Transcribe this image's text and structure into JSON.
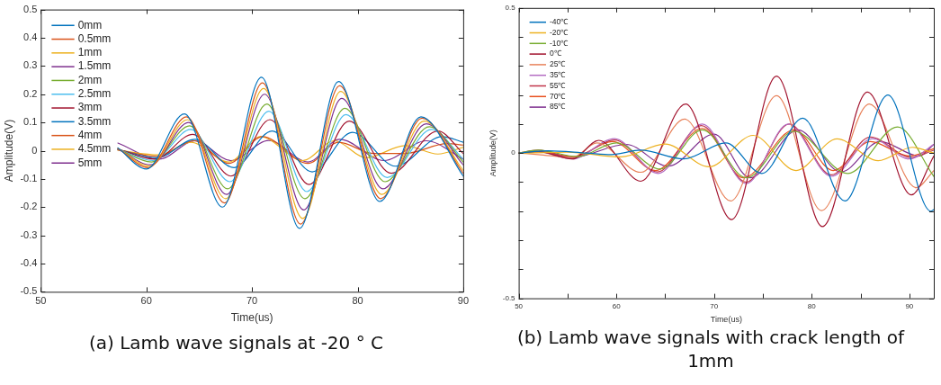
{
  "chart_data": [
    {
      "type": "line",
      "title": "(a) Lamb wave signals at -20 ° C",
      "xlabel": "Time(us)",
      "ylabel": "Amplitude(V)",
      "xlim": [
        50,
        90
      ],
      "ylim": [
        -0.5,
        0.5
      ],
      "xticks": [
        50,
        60,
        70,
        80,
        90
      ],
      "yticks": [
        -0.5,
        -0.4,
        -0.3,
        -0.2,
        -0.1,
        0,
        0.1,
        0.2,
        0.3,
        0.4,
        0.5
      ],
      "legend": "top left",
      "series": [
        {
          "name": "0mm",
          "color": "#0072bd",
          "x": [
            57.3,
            60.0,
            63.6,
            67.2,
            70.9,
            74.5,
            78.2,
            82.1,
            86.0,
            90
          ],
          "values": [
            0.01,
            -0.065,
            0.13,
            -0.2,
            0.26,
            -0.275,
            0.245,
            -0.18,
            0.12,
            -0.09
          ]
        },
        {
          "name": "0.5mm",
          "color": "#d95319",
          "x": [
            57.3,
            60.2,
            63.8,
            67.4,
            71.0,
            74.6,
            78.3,
            82.2,
            86.1,
            90
          ],
          "values": [
            0.008,
            -0.06,
            0.12,
            -0.185,
            0.24,
            -0.26,
            0.23,
            -0.17,
            0.115,
            -0.08
          ]
        },
        {
          "name": "1mm",
          "color": "#edb120",
          "x": [
            57.3,
            60.3,
            63.9,
            67.5,
            71.1,
            74.8,
            78.4,
            82.3,
            86.3,
            90
          ],
          "values": [
            0.008,
            -0.055,
            0.11,
            -0.17,
            0.22,
            -0.24,
            0.21,
            -0.155,
            0.105,
            -0.07
          ]
        },
        {
          "name": "1.5mm",
          "color": "#7e2f8e",
          "x": [
            57.3,
            60.4,
            64.0,
            67.6,
            71.2,
            74.9,
            78.5,
            82.4,
            86.5,
            90
          ],
          "values": [
            0.006,
            -0.05,
            0.1,
            -0.155,
            0.2,
            -0.21,
            0.185,
            -0.135,
            0.095,
            -0.05
          ]
        },
        {
          "name": "2mm",
          "color": "#77ac30",
          "x": [
            57.3,
            60.5,
            64.1,
            67.7,
            71.4,
            75.0,
            78.8,
            82.6,
            86.8,
            90
          ],
          "values": [
            0.005,
            -0.04,
            0.088,
            -0.135,
            0.165,
            -0.17,
            0.15,
            -0.11,
            0.085,
            -0.04
          ]
        },
        {
          "name": "2.5mm",
          "color": "#4dbeee",
          "x": [
            57.3,
            60.6,
            64.2,
            67.9,
            71.6,
            75.2,
            78.9,
            82.8,
            87.0,
            90
          ],
          "values": [
            0.005,
            -0.035,
            0.075,
            -0.11,
            0.14,
            -0.145,
            0.128,
            -0.095,
            0.075,
            -0.03
          ]
        },
        {
          "name": "3mm",
          "color": "#a2142f",
          "x": [
            57.3,
            60.8,
            64.4,
            68.0,
            71.7,
            75.4,
            79.2,
            83.2,
            87.6,
            90
          ],
          "values": [
            0.005,
            -0.03,
            0.058,
            -0.09,
            0.11,
            -0.12,
            0.105,
            -0.08,
            0.07,
            -0.01
          ]
        },
        {
          "name": "3.5mm",
          "color": "#0072bd",
          "x": [
            57.3,
            61.0,
            64.6,
            68.3,
            71.9,
            75.7,
            79.5,
            83.6,
            88.0,
            90
          ],
          "values": [
            0.004,
            -0.025,
            0.04,
            -0.06,
            0.07,
            -0.075,
            0.065,
            -0.055,
            0.05,
            0.03
          ]
        },
        {
          "name": "4mm",
          "color": "#d95319",
          "x": [
            57.3,
            61.0,
            64.5,
            67.8,
            71.0,
            75.3,
            78.2,
            81.5,
            84.5,
            88.5,
            90
          ],
          "values": [
            0.003,
            -0.02,
            0.035,
            -0.045,
            0.05,
            -0.045,
            0.03,
            -0.01,
            -0.01,
            0.025,
            0.02
          ]
        },
        {
          "name": "4.5mm",
          "color": "#edb120",
          "x": [
            57.3,
            61.2,
            64.2,
            67.8,
            70.8,
            74.8,
            77.8,
            80.8,
            84.5,
            87.6,
            90
          ],
          "values": [
            0.002,
            -0.015,
            0.03,
            -0.04,
            0.05,
            -0.035,
            0.035,
            -0.025,
            0.018,
            -0.012,
            0.012
          ]
        },
        {
          "name": "5mm",
          "color": "#7e2f8e",
          "x": [
            57.3,
            61.2,
            64.6,
            68.0,
            71.6,
            75.3,
            78.3,
            82.5,
            86.5,
            90
          ],
          "values": [
            0.027,
            -0.03,
            0.035,
            -0.035,
            0.036,
            -0.04,
            0.04,
            -0.035,
            0.035,
            -0.03
          ]
        }
      ]
    },
    {
      "type": "line",
      "title": "(b) Lamb wave signals with crack length of 1mm",
      "xlabel": "Time(us)",
      "ylabel": "Amplitude(V)",
      "xlim": [
        50,
        92.5
      ],
      "ylim": [
        -0.5,
        0.5
      ],
      "xticks": [
        50,
        {
          "value": 55,
          "label": null
        },
        60,
        {
          "value": 65,
          "label": null
        },
        70,
        {
          "value": 75,
          "label": null
        },
        80,
        {
          "value": 85,
          "label": null
        },
        90
      ],
      "yticks": [
        -0.5,
        {
          "value": -0.4,
          "label": null
        },
        {
          "value": -0.3,
          "label": null
        },
        {
          "value": -0.2,
          "label": null
        },
        {
          "value": -0.1,
          "label": null
        },
        0,
        {
          "value": 0.1,
          "label": null
        },
        {
          "value": 0.2,
          "label": null
        },
        {
          "value": 0.3,
          "label": null
        },
        {
          "value": 0.4,
          "label": null
        },
        0.5
      ],
      "legend": "top left",
      "series": [
        {
          "name": "-40℃",
          "color": "#0072bd",
          "x": [
            50,
            53,
            57,
            59.5,
            62.5,
            66.9,
            71.2,
            74.9,
            79.1,
            83.4,
            87.8,
            92.2,
            92.5
          ],
          "values": [
            0,
            0.008,
            0,
            -0.005,
            0.01,
            -0.02,
            0.035,
            -0.07,
            0.12,
            -0.165,
            0.2,
            -0.2,
            -0.195
          ]
        },
        {
          "name": "-20℃",
          "color": "#edb120",
          "x": [
            50,
            55,
            60.5,
            65.0,
            69.5,
            74.0,
            78.4,
            82.6,
            86.8,
            90.3,
            92.5
          ],
          "values": [
            0,
            0.003,
            -0.013,
            0.031,
            -0.047,
            0.061,
            -0.06,
            0.049,
            -0.026,
            0.02,
            0
          ]
        },
        {
          "name": "-10℃",
          "color": "#77ac30",
          "x": [
            50,
            52,
            56,
            60,
            64.5,
            68.8,
            73.3,
            78.2,
            83.7,
            88.8,
            92.5
          ],
          "values": [
            0,
            0.01,
            -0.012,
            0.035,
            -0.055,
            0.08,
            -0.085,
            0.075,
            -0.07,
            0.09,
            -0.08
          ]
        },
        {
          "name": "0℃",
          "color": "#a2142f",
          "x": [
            50,
            52,
            55.5,
            58.2,
            62.5,
            67.1,
            71.8,
            76.4,
            81.1,
            85.7,
            90.2,
            92.5
          ],
          "values": [
            0,
            0.005,
            -0.02,
            0.044,
            -0.097,
            0.169,
            -0.229,
            0.265,
            -0.253,
            0.21,
            -0.144,
            -0.01
          ]
        },
        {
          "name": "25℃",
          "color": "#e8825a",
          "x": [
            50,
            52,
            55.5,
            58,
            62.5,
            67,
            71.7,
            76.4,
            81,
            85.9,
            90.7,
            92.5
          ],
          "values": [
            0,
            -0.005,
            -0.015,
            0.035,
            -0.066,
            0.117,
            -0.165,
            0.198,
            -0.198,
            0.169,
            -0.119,
            -0.06
          ]
        },
        {
          "name": "35℃",
          "color": "#b36cc2",
          "x": [
            50,
            52,
            55.5,
            59.8,
            64.3,
            68.8,
            73.3,
            77.6,
            82,
            86.2,
            90,
            92.5
          ],
          "values": [
            0,
            0.005,
            -0.02,
            0.05,
            -0.07,
            0.1,
            -0.105,
            0.1,
            -0.08,
            0.05,
            -0.02,
            0.03
          ]
        },
        {
          "name": "55℃",
          "color": "#c0354a",
          "x": [
            50,
            52,
            55.6,
            59.8,
            64.2,
            68.7,
            73.3,
            77.7,
            82,
            86,
            90.2,
            92.5
          ],
          "values": [
            0,
            0.01,
            -0.015,
            0.045,
            -0.065,
            0.095,
            -0.1,
            0.1,
            -0.075,
            0.055,
            -0.015,
            0.01
          ]
        },
        {
          "name": "70℃",
          "color": "#e8501e",
          "x": [
            50,
            52,
            55.6,
            59.6,
            64.0,
            68.8,
            73,
            78.2,
            82.2,
            86,
            90,
            92.5
          ],
          "values": [
            0,
            0.005,
            -0.012,
            0.04,
            -0.06,
            0.085,
            -0.085,
            0.08,
            -0.06,
            0.04,
            -0.01,
            0.015
          ]
        },
        {
          "name": "85℃",
          "color": "#7e2f8e",
          "x": [
            50,
            52,
            55.5,
            61,
            65.3,
            70,
            73.7,
            78.6,
            83,
            87,
            91,
            92.5
          ],
          "values": [
            0,
            0.005,
            -0.015,
            0.03,
            -0.045,
            0.065,
            -0.085,
            0.08,
            -0.065,
            0.04,
            -0.01,
            0.03
          ]
        }
      ]
    }
  ]
}
